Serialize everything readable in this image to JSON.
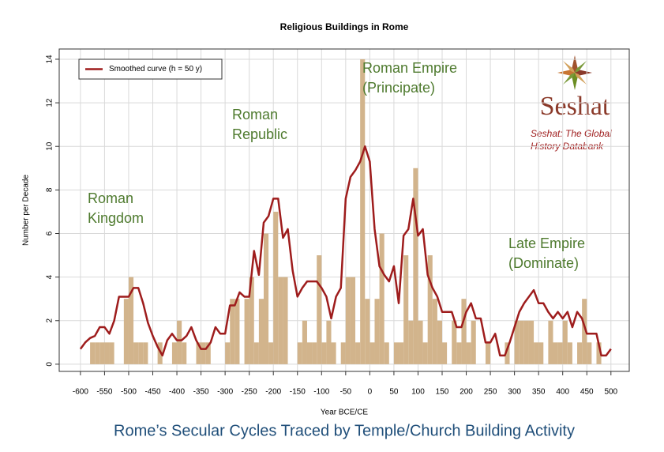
{
  "chart_data": {
    "type": "histogram",
    "title": "Religious Buildings in Rome",
    "x_label": "Year BCE/CE",
    "y_label": "Number per Decade",
    "caption": "Rome’s Secular Cycles Traced by Temple/Church Building Activity",
    "bins": [
      -600,
      -590,
      -580,
      -570,
      -560,
      -550,
      -540,
      -530,
      -520,
      -510,
      -500,
      -490,
      -480,
      -470,
      -460,
      -450,
      -440,
      -430,
      -420,
      -410,
      -400,
      -390,
      -380,
      -370,
      -360,
      -350,
      -340,
      -330,
      -320,
      -310,
      -300,
      -290,
      -280,
      -270,
      -260,
      -250,
      -240,
      -230,
      -220,
      -210,
      -200,
      -190,
      -180,
      -170,
      -160,
      -150,
      -140,
      -130,
      -120,
      -110,
      -100,
      -90,
      -80,
      -70,
      -60,
      -50,
      -40,
      -30,
      -20,
      -10,
      0,
      10,
      20,
      30,
      40,
      50,
      60,
      70,
      80,
      90,
      100,
      110,
      120,
      130,
      140,
      150,
      160,
      170,
      180,
      190,
      200,
      210,
      220,
      230,
      240,
      250,
      260,
      270,
      280,
      290,
      300,
      310,
      320,
      330,
      340,
      350,
      360,
      370,
      380,
      390,
      400,
      410,
      420,
      430,
      440,
      450,
      460,
      470,
      480,
      490,
      500
    ],
    "counts": [
      0,
      0,
      1,
      1,
      1,
      1,
      1,
      0,
      0,
      3,
      4,
      1,
      1,
      1,
      0,
      0,
      1,
      0,
      0,
      1,
      2,
      1,
      0,
      0,
      1,
      1,
      1,
      0,
      0,
      0,
      1,
      3,
      3,
      0,
      3,
      4,
      1,
      3,
      6,
      1,
      7,
      4,
      4,
      0,
      0,
      1,
      2,
      1,
      1,
      5,
      1,
      2,
      1,
      0,
      1,
      4,
      4,
      1,
      14,
      3,
      1,
      3,
      6,
      1,
      0,
      1,
      1,
      5,
      2,
      9,
      2,
      1,
      5,
      3,
      2,
      1,
      0,
      2,
      1,
      3,
      1,
      2,
      0,
      0,
      1,
      0,
      0,
      0,
      1,
      0,
      2,
      2,
      2,
      2,
      1,
      1,
      0,
      2,
      1,
      1,
      2,
      1,
      0,
      1,
      3,
      1,
      0,
      1,
      0,
      0
    ],
    "bar_color": "#d2b48c",
    "series": [
      {
        "name": "Smoothed curve (h = 50 y)",
        "color": "#9e1c1c",
        "x": [
          -600,
          -590,
          -580,
          -570,
          -560,
          -550,
          -540,
          -530,
          -520,
          -510,
          -500,
          -490,
          -480,
          -470,
          -460,
          -450,
          -440,
          -430,
          -420,
          -410,
          -400,
          -390,
          -380,
          -370,
          -360,
          -350,
          -340,
          -330,
          -320,
          -310,
          -300,
          -290,
          -280,
          -270,
          -260,
          -250,
          -240,
          -230,
          -220,
          -210,
          -200,
          -190,
          -180,
          -170,
          -160,
          -150,
          -140,
          -130,
          -120,
          -110,
          -100,
          -90,
          -80,
          -70,
          -60,
          -50,
          -40,
          -30,
          -20,
          -10,
          0,
          10,
          20,
          30,
          40,
          50,
          60,
          70,
          80,
          90,
          100,
          110,
          120,
          130,
          140,
          150,
          160,
          170,
          180,
          190,
          200,
          210,
          220,
          230,
          240,
          250,
          260,
          270,
          280,
          290,
          300,
          310,
          320,
          330,
          340,
          350,
          360,
          370,
          380,
          390,
          400,
          410,
          420,
          430,
          440,
          450,
          460,
          470,
          480,
          490,
          500
        ],
        "values": [
          0.7,
          1.0,
          1.2,
          1.3,
          1.7,
          1.7,
          1.4,
          2.0,
          3.1,
          3.1,
          3.1,
          3.5,
          3.5,
          2.8,
          1.9,
          1.3,
          0.8,
          0.4,
          1.1,
          1.4,
          1.1,
          1.1,
          1.3,
          1.7,
          1.1,
          0.7,
          0.7,
          1.0,
          1.7,
          1.4,
          1.4,
          2.7,
          2.7,
          3.3,
          3.1,
          3.1,
          5.2,
          4.1,
          6.5,
          6.8,
          7.6,
          7.6,
          5.8,
          6.2,
          4.3,
          3.1,
          3.5,
          3.8,
          3.8,
          3.8,
          3.5,
          3.1,
          2.1,
          3.1,
          3.5,
          7.6,
          8.6,
          8.9,
          9.3,
          10.0,
          9.3,
          6.2,
          4.5,
          4.1,
          3.8,
          4.5,
          2.8,
          5.9,
          6.2,
          7.6,
          5.9,
          6.2,
          4.1,
          3.5,
          3.1,
          2.4,
          2.4,
          2.4,
          1.7,
          1.7,
          2.4,
          2.8,
          2.1,
          2.1,
          1.0,
          1.0,
          1.4,
          0.4,
          0.4,
          1.0,
          1.7,
          2.4,
          2.8,
          3.1,
          3.4,
          2.8,
          2.8,
          2.4,
          2.1,
          2.4,
          2.1,
          2.4,
          1.7,
          2.4,
          2.1,
          1.4,
          1.4,
          1.4,
          0.4,
          0.4,
          0.7
        ]
      }
    ],
    "xlim": [
      -644,
      538
    ],
    "ylim": [
      -0.33,
      14.47
    ],
    "xticks": [
      -600,
      -550,
      -500,
      -450,
      -400,
      -350,
      -300,
      -250,
      -200,
      -150,
      -100,
      -50,
      0,
      50,
      100,
      150,
      200,
      250,
      300,
      350,
      400,
      450,
      500
    ],
    "yticks": [
      0,
      2,
      4,
      6,
      8,
      10,
      12,
      14
    ],
    "grid": true,
    "legend": "top-left",
    "annotations": [
      [
        "Roman",
        "Kingdom"
      ],
      [
        "Roman",
        "Republic"
      ],
      [
        "Roman Empire",
        "(Principate)"
      ],
      [
        "Late Empire",
        "(Dominate)"
      ]
    ],
    "annotation_color": "#4e7a2e",
    "logo": {
      "name": "Seshat",
      "tagline": [
        "Seshat: The Global",
        "History Databank"
      ]
    }
  }
}
